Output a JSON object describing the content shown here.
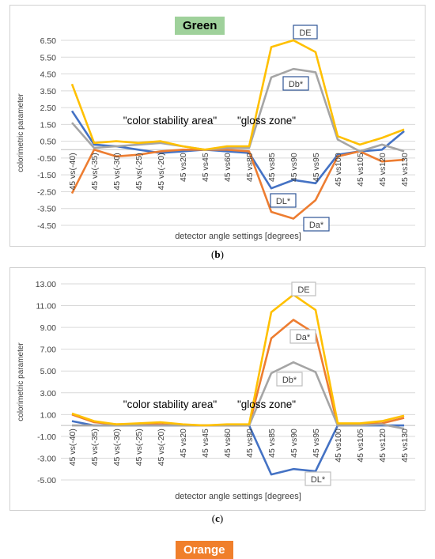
{
  "captions": {
    "b": "b",
    "c": "c"
  },
  "chart_data": [
    {
      "type": "line",
      "title": "Green",
      "xlabel": "detector angle settings [degrees]",
      "ylabel": "colorimetric parameter",
      "ylim": [
        -4.5,
        6.5
      ],
      "yticks": [
        "6.50",
        "5.50",
        "4.50",
        "3.50",
        "2.50",
        "1.50",
        "0.50",
        "-0.50",
        "-1.50",
        "-2.50",
        "-3.50",
        "-4.50"
      ],
      "categories": [
        "45 vs(-40)",
        "45 vs(-35)",
        "45 vs(-30)",
        "45 vs(-25)",
        "45 vs(-20)",
        "45 vs20",
        "45 vs45",
        "45 vs60",
        "45 vs80",
        "45 vs85",
        "45 vs90",
        "45 vs95",
        "45 vs100",
        "45 vs105",
        "45 vs120",
        "45 vs130"
      ],
      "grid": true,
      "series": [
        {
          "name": "DL*",
          "color": "#4472c4",
          "values": [
            2.3,
            0.3,
            0.2,
            0.0,
            -0.2,
            -0.1,
            0.0,
            -0.1,
            -0.2,
            -2.3,
            -1.8,
            -2.0,
            -0.3,
            -0.1,
            0.0,
            1.1
          ]
        },
        {
          "name": "Da*",
          "color": "#ed7d31",
          "values": [
            -2.6,
            0.0,
            -0.4,
            -0.3,
            -0.1,
            0.0,
            0.0,
            0.0,
            -0.1,
            -3.7,
            -4.1,
            -3.0,
            -0.4,
            -0.1,
            -0.7,
            -0.6
          ]
        },
        {
          "name": "Db*",
          "color": "#a5a5a5",
          "values": [
            1.6,
            0.1,
            0.2,
            0.3,
            0.4,
            0.2,
            0.0,
            0.1,
            0.1,
            4.3,
            4.8,
            4.6,
            0.6,
            -0.1,
            0.3,
            -0.1
          ]
        },
        {
          "name": "DE",
          "color": "#ffc000",
          "values": [
            3.9,
            0.4,
            0.5,
            0.4,
            0.5,
            0.2,
            0.0,
            0.2,
            0.2,
            6.1,
            6.5,
            5.8,
            0.8,
            0.3,
            0.7,
            1.2
          ]
        }
      ],
      "annotations": [
        "\"color stability area\"",
        "\"gloss zone\""
      ],
      "series_labels": {
        "DE": "DE",
        "Db*": "Db*",
        "DL*": "DL*",
        "Da*": "Da*"
      }
    },
    {
      "type": "line",
      "title": "Orange",
      "xlabel": "detector angle settings [degrees]",
      "ylabel": "colorimetric parameter",
      "ylim": [
        -5.0,
        13.0
      ],
      "yticks": [
        "13.00",
        "11.00",
        "9.00",
        "7.00",
        "5.00",
        "3.00",
        "1.00",
        "-1.00",
        "-3.00",
        "-5.00"
      ],
      "categories": [
        "45 vs(-40)",
        "45 vs(-35)",
        "45 vs(-30)",
        "45 vs(-25)",
        "45 vs(-20)",
        "45 vs20",
        "45 vs45",
        "45 vs60",
        "45 vs80",
        "45 vs85",
        "45 vs90",
        "45 vs95",
        "45 vs100",
        "45 vs105",
        "45 vs120",
        "45 vs130"
      ],
      "grid": true,
      "series": [
        {
          "name": "DL*",
          "color": "#4472c4",
          "values": [
            0.4,
            0.0,
            0.0,
            0.0,
            0.0,
            0.0,
            0.0,
            0.0,
            0.0,
            -4.5,
            -4.0,
            -4.2,
            0.0,
            0.0,
            0.0,
            0.0
          ]
        },
        {
          "name": "Da*",
          "color": "#ed7d31",
          "values": [
            1.0,
            0.3,
            0.1,
            0.1,
            0.1,
            0.0,
            0.0,
            0.0,
            0.0,
            8.0,
            9.7,
            8.4,
            0.0,
            0.1,
            0.2,
            0.7
          ]
        },
        {
          "name": "Db*",
          "color": "#a5a5a5",
          "values": [
            0.0,
            0.0,
            0.0,
            0.0,
            0.0,
            0.0,
            0.0,
            0.0,
            0.0,
            4.8,
            5.8,
            4.9,
            0.0,
            0.0,
            0.1,
            -0.3
          ]
        },
        {
          "name": "DE",
          "color": "#ffc000",
          "values": [
            1.1,
            0.4,
            0.1,
            0.2,
            0.3,
            0.1,
            0.0,
            0.1,
            0.1,
            10.4,
            12.0,
            10.6,
            0.2,
            0.2,
            0.4,
            0.9
          ]
        }
      ],
      "annotations": [
        "\"color stability area\"",
        "\"gloss zone\""
      ],
      "series_labels": {
        "DE": "DE",
        "Da*": "Da*",
        "Db*": "Db*",
        "DL*": "DL*"
      }
    }
  ]
}
